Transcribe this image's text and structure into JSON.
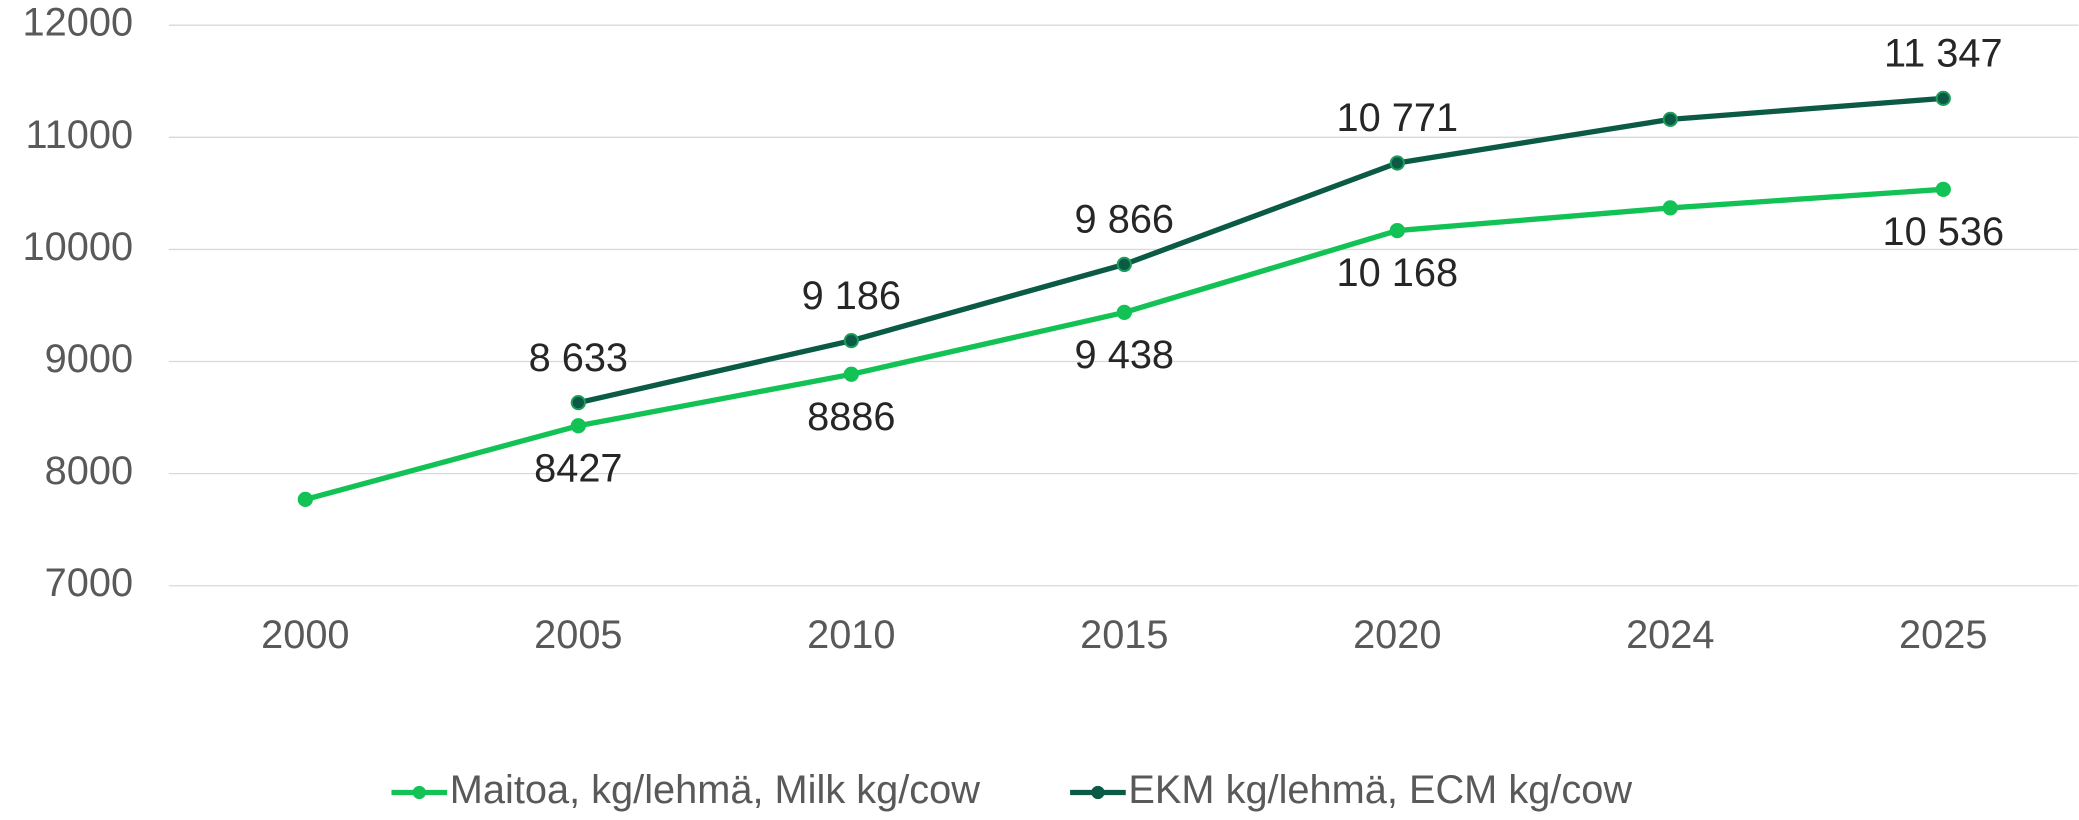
{
  "chart_data": {
    "type": "line",
    "categories": [
      "2000",
      "2005",
      "2010",
      "2015",
      "2020",
      "2024",
      "2025"
    ],
    "series": [
      {
        "name": "Maitoa, kg/lehmä, Milk kg/cow",
        "color": "#12c255",
        "values": [
          7770,
          8427,
          8886,
          9438,
          10168,
          10370,
          10536
        ],
        "value_labels": [
          null,
          "8427",
          "8886",
          "9 438",
          "10 168",
          null,
          "10 536"
        ]
      },
      {
        "name": "EKM kg/lehmä, ECM kg/cow",
        "color": "#0b5a46",
        "values": [
          null,
          8633,
          9186,
          9866,
          10771,
          11160,
          11347
        ],
        "value_labels": [
          null,
          "8 633",
          "9 186",
          "9 866",
          "10 771",
          null,
          "11 347"
        ]
      }
    ],
    "ylim": [
      7000,
      12000
    ],
    "yticks": [
      7000,
      8000,
      9000,
      10000,
      11000,
      12000
    ],
    "grid": true,
    "legend": "bottom"
  }
}
